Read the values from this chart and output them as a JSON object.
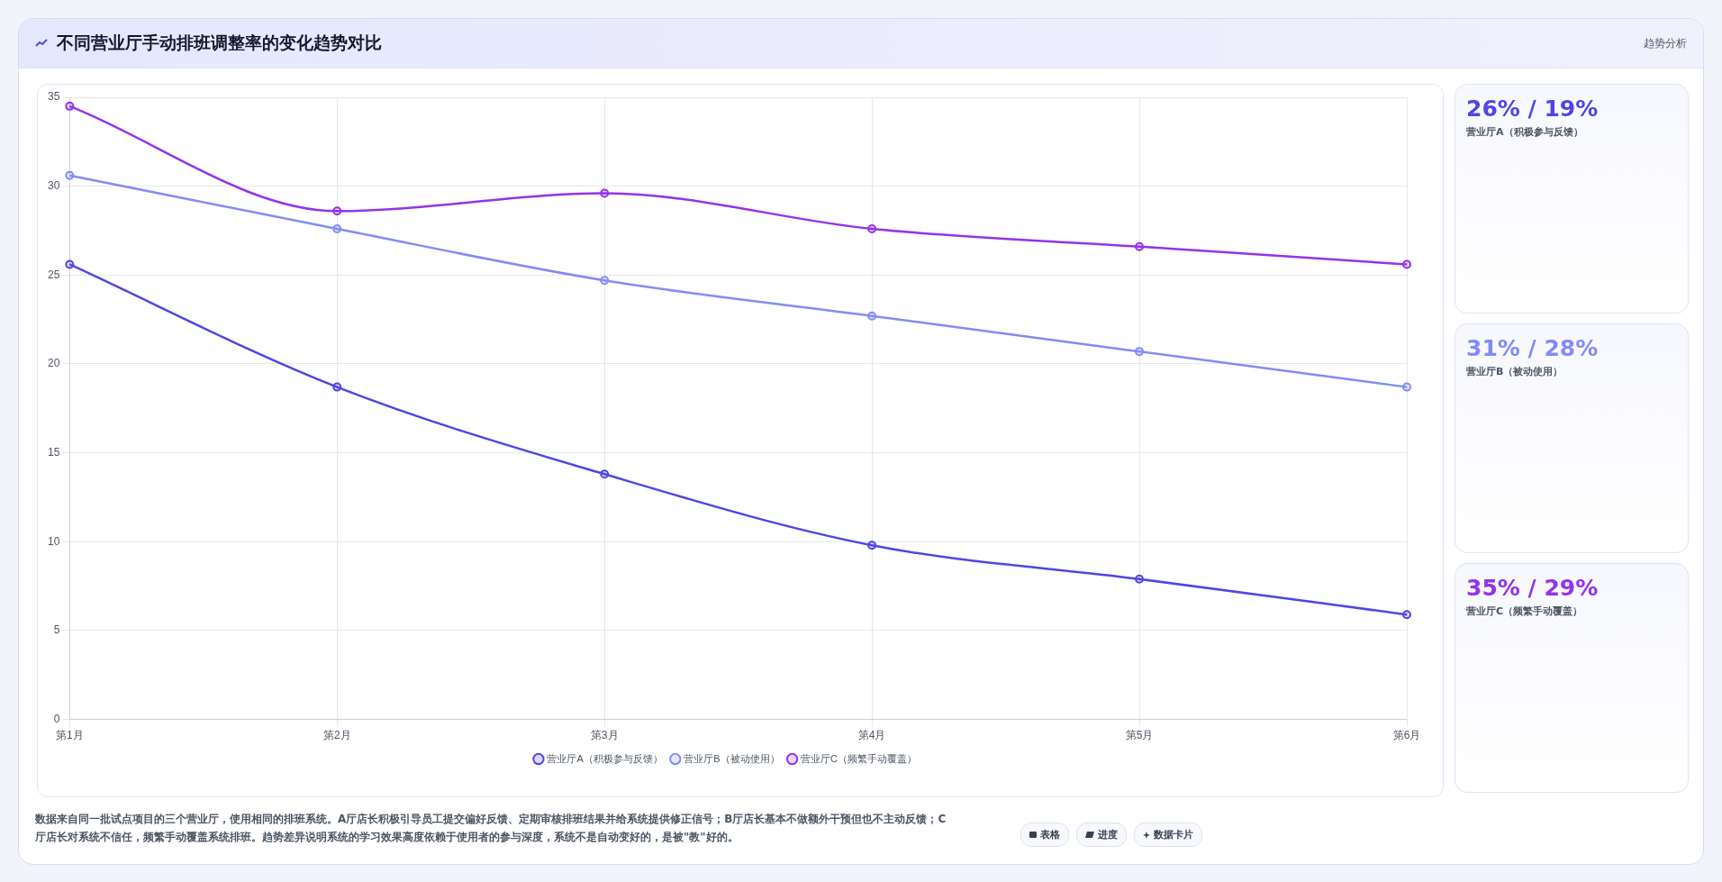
{
  "chart_data": {
    "type": "line",
    "title": "不同营业厅手动排班调整率的变化趋势对比",
    "categories": [
      "第1月",
      "第2月",
      "第3月",
      "第4月",
      "第5月",
      "第6月"
    ],
    "series": [
      {
        "name": "营业厅A（积极参与反馈）",
        "color": "#4f46e5",
        "values": [
          25.6,
          18.7,
          13.8,
          9.8,
          7.9,
          5.9
        ]
      },
      {
        "name": "营业厅B（被动使用）",
        "color": "#818cf8",
        "values": [
          30.6,
          27.6,
          24.7,
          22.7,
          20.7,
          18.7
        ]
      },
      {
        "name": "营业厅C（频繁手动覆盖）",
        "color": "#9333ea",
        "values": [
          34.5,
          28.6,
          29.6,
          27.6,
          26.6,
          25.6
        ]
      }
    ],
    "ylim": [
      0,
      35
    ],
    "yticks": [
      0,
      5,
      10,
      15,
      20,
      25,
      30,
      35
    ],
    "grid": true,
    "legend": "bottom",
    "marker": "circle",
    "line_style": "solid",
    "annotations": [
      "趋势分析",
      "26% / 19%",
      "营业厅A（积极参与反馈）",
      "31% / 28%",
      "营业厅B（被动使用）",
      "35% / 29%",
      "营业厅C（频繁手动覆盖）",
      "数据来自同一批试点项目的三个营业厅，使用相同的排班系统。A厅店长积极引导员工提交偏好反馈、定期审核排班结果并给系统提供修正信号；B厅店长基本不做额外干预但也不主动反馈；C厅店长对系统不信任，频繁手动覆盖系统排班。趋势差异说明系统的学习效果高度依赖于使用者的参与深度，系统不是自动变好的，是被\"教\"好的。",
      "表格",
      "进度",
      "数据卡片"
    ]
  }
}
